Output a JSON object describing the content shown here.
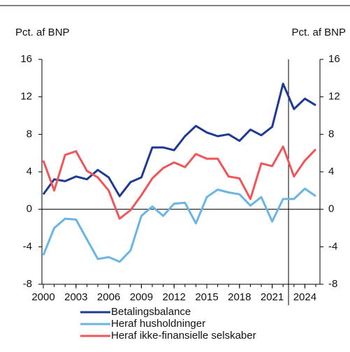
{
  "chart_data": {
    "type": "line",
    "ylabel": "Pct. af BNP",
    "y2label": "Pct. af BNP",
    "x": [
      2000,
      2001,
      2002,
      2003,
      2004,
      2005,
      2006,
      2007,
      2008,
      2009,
      2010,
      2011,
      2012,
      2013,
      2014,
      2015,
      2016,
      2017,
      2018,
      2019,
      2020,
      2021,
      2022,
      2023,
      2024,
      2025
    ],
    "series": [
      {
        "name": "Betalingsbalance",
        "color": "#1f3a93",
        "values": [
          1.6,
          3.2,
          3.0,
          3.5,
          3.2,
          4.2,
          3.4,
          1.4,
          2.9,
          3.4,
          6.6,
          6.6,
          6.3,
          7.8,
          8.9,
          8.2,
          7.8,
          8.0,
          7.3,
          8.5,
          7.9,
          8.8,
          13.4,
          10.7,
          11.8,
          11.1
        ]
      },
      {
        "name": "Heraf husholdninger",
        "color": "#6ab4e6",
        "values": [
          -4.9,
          -2.0,
          -1.0,
          -1.1,
          -3.2,
          -5.3,
          -5.1,
          -5.6,
          -4.4,
          -0.7,
          0.3,
          -0.7,
          0.6,
          0.7,
          -1.5,
          1.3,
          2.1,
          1.8,
          1.6,
          0.4,
          1.3,
          -1.3,
          1.1,
          1.1,
          2.2,
          1.4
        ]
      },
      {
        "name": "Heraf ikke-finansielle selskaber",
        "color": "#f0555a",
        "values": [
          5.2,
          2.0,
          5.8,
          6.2,
          4.1,
          3.4,
          2.0,
          -1.0,
          -0.1,
          1.5,
          3.3,
          4.4,
          5.0,
          4.5,
          5.9,
          5.4,
          5.4,
          3.5,
          3.3,
          1.1,
          4.9,
          4.6,
          6.7,
          3.5,
          5.2,
          6.4
        ]
      }
    ],
    "xlim": [
      2000,
      2025
    ],
    "xticks": [
      2000,
      2003,
      2006,
      2009,
      2012,
      2015,
      2018,
      2021,
      2024
    ],
    "ylim": [
      -8,
      16
    ],
    "yticks": [
      -8,
      -4,
      0,
      4,
      8,
      12,
      16
    ],
    "y2lim": [
      -8,
      16
    ],
    "y2ticks": [
      -8,
      -4,
      0,
      4,
      8,
      12,
      16
    ],
    "vline": 2022.5
  }
}
